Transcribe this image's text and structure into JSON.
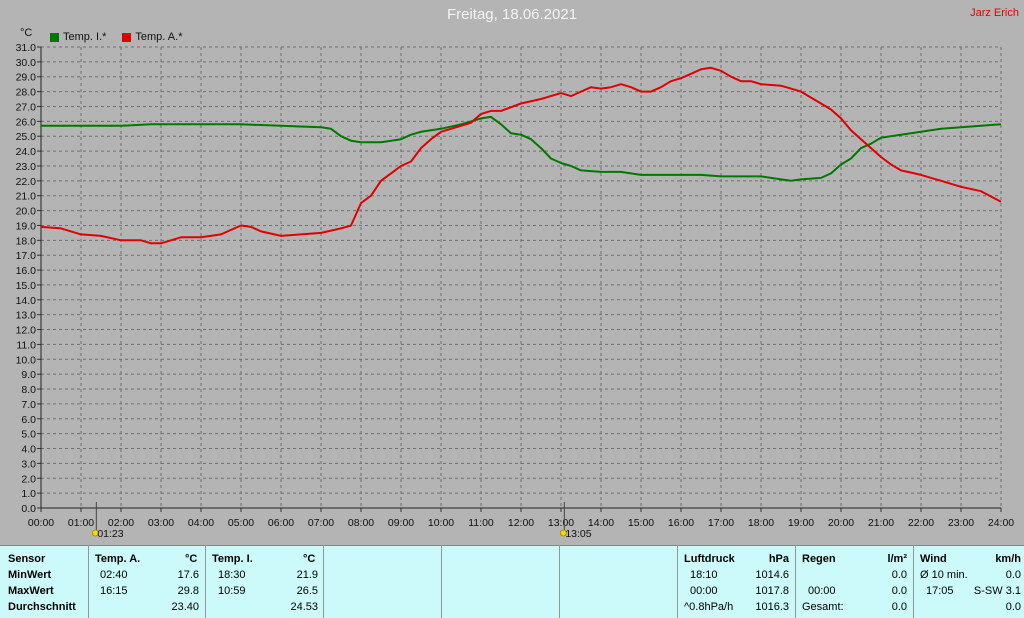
{
  "title": "Freitag, 18.06.2021",
  "brand": "Jarz Erich",
  "colors": {
    "indoor": "#007800",
    "outdoor": "#e00000",
    "background": "#b4b4b4",
    "table": "#ccfafa"
  },
  "chart_data": {
    "type": "line",
    "ylabel": "°C",
    "ylim": [
      0,
      31
    ],
    "xlim": [
      0,
      24
    ],
    "grid": true,
    "legend": "top-left",
    "x_ticks": [
      "00:00",
      "01:00",
      "02:00",
      "03:00",
      "04:00",
      "05:00",
      "06:00",
      "07:00",
      "08:00",
      "09:00",
      "10:00",
      "11:00",
      "12:00",
      "13:00",
      "14:00",
      "15:00",
      "16:00",
      "17:00",
      "18:00",
      "19:00",
      "20:00",
      "21:00",
      "22:00",
      "23:00",
      "24:00"
    ],
    "y_ticks": [
      "0.0",
      "1.0",
      "2.0",
      "3.0",
      "4.0",
      "5.0",
      "6.0",
      "7.0",
      "8.0",
      "9.0",
      "10.0",
      "11.0",
      "12.0",
      "13.0",
      "14.0",
      "15.0",
      "16.0",
      "17.0",
      "18.0",
      "19.0",
      "20.0",
      "21.0",
      "22.0",
      "23.0",
      "24.0",
      "25.0",
      "26.0",
      "27.0",
      "28.0",
      "29.0",
      "30.0",
      "31.0"
    ],
    "markers": [
      {
        "label": "01:23",
        "x": 1.383,
        "icon": "sunrise-icon"
      },
      {
        "label": "13:05",
        "x": 13.083,
        "icon": "sun-icon"
      }
    ],
    "series": [
      {
        "name": "Temp. I.*",
        "color": "#007800",
        "points": [
          [
            0,
            25.7
          ],
          [
            2,
            25.7
          ],
          [
            2.75,
            25.8
          ],
          [
            5,
            25.8
          ],
          [
            6,
            25.7
          ],
          [
            7,
            25.6
          ],
          [
            7.25,
            25.5
          ],
          [
            7.5,
            25.0
          ],
          [
            7.75,
            24.7
          ],
          [
            8,
            24.6
          ],
          [
            8.5,
            24.6
          ],
          [
            9,
            24.8
          ],
          [
            9.25,
            25.1
          ],
          [
            9.5,
            25.3
          ],
          [
            10,
            25.5
          ],
          [
            10.5,
            25.8
          ],
          [
            11,
            26.2
          ],
          [
            11.25,
            26.3
          ],
          [
            11.5,
            25.8
          ],
          [
            11.75,
            25.2
          ],
          [
            12,
            25.1
          ],
          [
            12.25,
            24.8
          ],
          [
            12.5,
            24.2
          ],
          [
            12.75,
            23.5
          ],
          [
            13,
            23.2
          ],
          [
            13.25,
            23.0
          ],
          [
            13.5,
            22.7
          ],
          [
            14,
            22.6
          ],
          [
            14.5,
            22.6
          ],
          [
            15,
            22.4
          ],
          [
            15.5,
            22.4
          ],
          [
            16,
            22.4
          ],
          [
            16.5,
            22.4
          ],
          [
            17,
            22.3
          ],
          [
            18,
            22.3
          ],
          [
            18.5,
            22.1
          ],
          [
            18.75,
            22.0
          ],
          [
            19,
            22.1
          ],
          [
            19.5,
            22.2
          ],
          [
            19.75,
            22.5
          ],
          [
            20,
            23.1
          ],
          [
            20.25,
            23.5
          ],
          [
            20.5,
            24.2
          ],
          [
            20.75,
            24.5
          ],
          [
            21,
            24.9
          ],
          [
            21.5,
            25.1
          ],
          [
            22,
            25.3
          ],
          [
            22.5,
            25.5
          ],
          [
            23,
            25.6
          ],
          [
            23.5,
            25.7
          ],
          [
            24,
            25.8
          ]
        ]
      },
      {
        "name": "Temp. A.*",
        "color": "#e00000",
        "points": [
          [
            0,
            18.9
          ],
          [
            0.5,
            18.8
          ],
          [
            1,
            18.4
          ],
          [
            1.5,
            18.3
          ],
          [
            2,
            18.0
          ],
          [
            2.5,
            18.0
          ],
          [
            2.75,
            17.8
          ],
          [
            3,
            17.8
          ],
          [
            3.5,
            18.2
          ],
          [
            4,
            18.2
          ],
          [
            4.5,
            18.4
          ],
          [
            4.75,
            18.7
          ],
          [
            5,
            19.0
          ],
          [
            5.25,
            18.9
          ],
          [
            5.5,
            18.6
          ],
          [
            6,
            18.3
          ],
          [
            6.5,
            18.4
          ],
          [
            7,
            18.5
          ],
          [
            7.5,
            18.8
          ],
          [
            7.75,
            19.0
          ],
          [
            8,
            20.5
          ],
          [
            8.25,
            21.0
          ],
          [
            8.5,
            22.0
          ],
          [
            8.75,
            22.5
          ],
          [
            9,
            23.0
          ],
          [
            9.25,
            23.3
          ],
          [
            9.5,
            24.2
          ],
          [
            9.75,
            24.8
          ],
          [
            10,
            25.3
          ],
          [
            10.5,
            25.7
          ],
          [
            10.75,
            25.9
          ],
          [
            11,
            26.5
          ],
          [
            11.25,
            26.7
          ],
          [
            11.5,
            26.7
          ],
          [
            12,
            27.2
          ],
          [
            12.5,
            27.5
          ],
          [
            13,
            27.9
          ],
          [
            13.25,
            27.7
          ],
          [
            13.5,
            28.0
          ],
          [
            13.75,
            28.3
          ],
          [
            14,
            28.2
          ],
          [
            14.25,
            28.3
          ],
          [
            14.5,
            28.5
          ],
          [
            14.75,
            28.3
          ],
          [
            15,
            28.0
          ],
          [
            15.25,
            28.0
          ],
          [
            15.5,
            28.3
          ],
          [
            15.75,
            28.7
          ],
          [
            16,
            28.9
          ],
          [
            16.25,
            29.2
          ],
          [
            16.5,
            29.5
          ],
          [
            16.75,
            29.6
          ],
          [
            17,
            29.4
          ],
          [
            17.25,
            29.0
          ],
          [
            17.5,
            28.7
          ],
          [
            17.75,
            28.7
          ],
          [
            18,
            28.5
          ],
          [
            18.5,
            28.4
          ],
          [
            19,
            28.0
          ],
          [
            19.25,
            27.6
          ],
          [
            19.5,
            27.2
          ],
          [
            19.75,
            26.8
          ],
          [
            20,
            26.2
          ],
          [
            20.25,
            25.4
          ],
          [
            20.5,
            24.8
          ],
          [
            20.75,
            24.2
          ],
          [
            21,
            23.6
          ],
          [
            21.25,
            23.1
          ],
          [
            21.5,
            22.7
          ],
          [
            22,
            22.4
          ],
          [
            22.5,
            22.0
          ],
          [
            23,
            21.6
          ],
          [
            23.5,
            21.3
          ],
          [
            24,
            20.6
          ]
        ]
      }
    ]
  },
  "table": {
    "sensor": {
      "header": "Sensor",
      "rows": [
        "MinWert",
        "MaxWert",
        "Durchschnitt"
      ]
    },
    "temp_a": {
      "header": "Temp. A.",
      "unit": "°C",
      "min_time": "02:40",
      "min": "17.6",
      "max_time": "16:15",
      "max": "29.8",
      "avg": "23.40"
    },
    "temp_i": {
      "header": "Temp. I.",
      "unit": "°C",
      "min_time": "18:30",
      "min": "21.9",
      "max_time": "10:59",
      "max": "26.5",
      "avg": "24.53"
    },
    "luftdruck": {
      "header": "Luftdruck",
      "unit": "hPa",
      "min_time": "18:10",
      "min": "1014.6",
      "max_time": "00:00",
      "max": "1017.8",
      "trend_label": "^0.8hPa/h",
      "trend": "1016.3"
    },
    "regen": {
      "header": "Regen",
      "unit": "l/m²",
      "min": "0.0",
      "max_time": "00:00",
      "max": "0.0",
      "total_label": "Gesamt:",
      "total": "0.0"
    },
    "wind": {
      "header": "Wind",
      "unit": "km/h",
      "avg_label": "Ø 10 min.",
      "avg": "0.0",
      "max_time": "17:05",
      "max_dir": "S-SW 3.1",
      "last": "0.0"
    }
  }
}
